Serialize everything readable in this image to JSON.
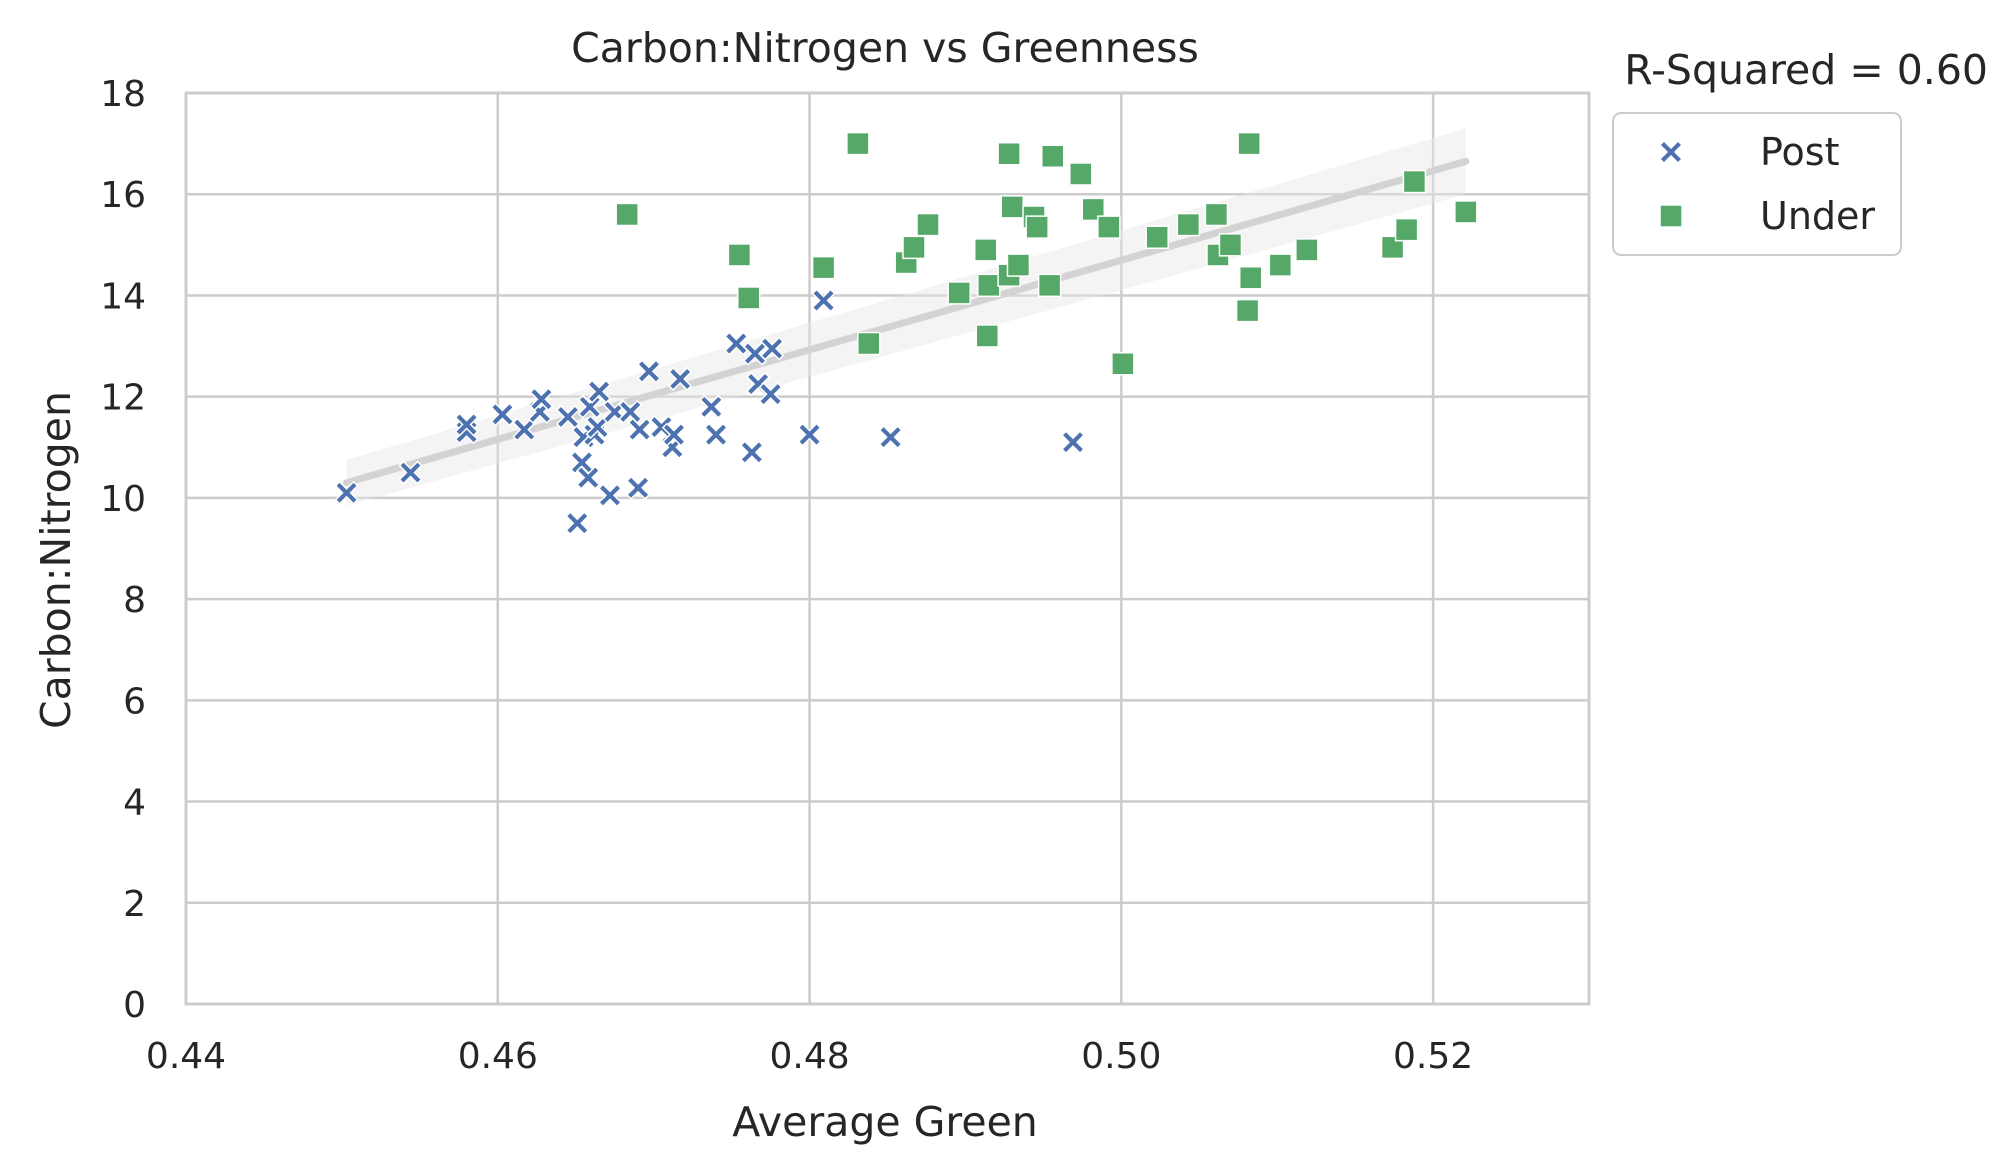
{
  "chart_data": {
    "type": "scatter",
    "title": "Carbon:Nitrogen vs Greenness",
    "xlabel": "Average Green",
    "ylabel": "Carbon:Nitrogen",
    "xlim": [
      0.44,
      0.53
    ],
    "ylim": [
      0,
      18
    ],
    "xticks": [
      "0.44",
      "0.46",
      "0.48",
      "0.50",
      "0.52"
    ],
    "yticks": [
      "0",
      "2",
      "4",
      "6",
      "8",
      "10",
      "12",
      "14",
      "16",
      "18"
    ],
    "grid": true,
    "annotation": "R-Squared = 0.60",
    "legend": {
      "placement": "outside-right",
      "entries": [
        "Post",
        "Under"
      ]
    },
    "series": [
      {
        "name": "Post",
        "marker": "x",
        "color": "#4c72b0",
        "points": [
          [
            0.4503,
            10.1
          ],
          [
            0.4544,
            10.5
          ],
          [
            0.458,
            11.3
          ],
          [
            0.458,
            11.45
          ],
          [
            0.4603,
            11.65
          ],
          [
            0.4617,
            11.35
          ],
          [
            0.4627,
            11.7
          ],
          [
            0.4628,
            11.95
          ],
          [
            0.4645,
            11.6
          ],
          [
            0.4651,
            9.5
          ],
          [
            0.4654,
            10.7
          ],
          [
            0.4655,
            11.2
          ],
          [
            0.4658,
            10.4
          ],
          [
            0.4659,
            11.8
          ],
          [
            0.4662,
            11.25
          ],
          [
            0.4664,
            11.4
          ],
          [
            0.4665,
            12.1
          ],
          [
            0.4672,
            10.05
          ],
          [
            0.4675,
            11.7
          ],
          [
            0.4685,
            11.7
          ],
          [
            0.469,
            10.2
          ],
          [
            0.4691,
            11.35
          ],
          [
            0.4697,
            12.5
          ],
          [
            0.4705,
            11.4
          ],
          [
            0.4712,
            11.0
          ],
          [
            0.4713,
            11.25
          ],
          [
            0.4717,
            12.35
          ],
          [
            0.4737,
            11.8
          ],
          [
            0.474,
            11.25
          ],
          [
            0.4753,
            13.05
          ],
          [
            0.4763,
            10.9
          ],
          [
            0.4765,
            12.85
          ],
          [
            0.4767,
            12.25
          ],
          [
            0.4775,
            12.05
          ],
          [
            0.4776,
            12.95
          ],
          [
            0.48,
            11.25
          ],
          [
            0.4809,
            13.9
          ],
          [
            0.4852,
            11.2
          ],
          [
            0.4969,
            11.1
          ]
        ]
      },
      {
        "name": "Under",
        "marker": "square",
        "color": "#55a868",
        "points": [
          [
            0.4683,
            15.6
          ],
          [
            0.4755,
            14.8
          ],
          [
            0.4761,
            13.95
          ],
          [
            0.4809,
            14.55
          ],
          [
            0.4831,
            17.0
          ],
          [
            0.4838,
            13.05
          ],
          [
            0.4862,
            14.65
          ],
          [
            0.4867,
            14.95
          ],
          [
            0.4876,
            15.4
          ],
          [
            0.4896,
            14.05
          ],
          [
            0.4913,
            14.9
          ],
          [
            0.4914,
            13.2
          ],
          [
            0.4915,
            14.2
          ],
          [
            0.4928,
            16.8
          ],
          [
            0.4928,
            14.4
          ],
          [
            0.493,
            15.75
          ],
          [
            0.4934,
            14.6
          ],
          [
            0.4944,
            15.55
          ],
          [
            0.4946,
            15.35
          ],
          [
            0.4954,
            14.2
          ],
          [
            0.4956,
            16.75
          ],
          [
            0.4974,
            16.4
          ],
          [
            0.4982,
            15.7
          ],
          [
            0.4992,
            15.35
          ],
          [
            0.5001,
            12.65
          ],
          [
            0.5023,
            15.15
          ],
          [
            0.5043,
            15.4
          ],
          [
            0.5061,
            15.6
          ],
          [
            0.5062,
            14.8
          ],
          [
            0.507,
            15.0
          ],
          [
            0.5081,
            13.7
          ],
          [
            0.5082,
            17.0
          ],
          [
            0.5083,
            14.35
          ],
          [
            0.5102,
            14.6
          ],
          [
            0.5119,
            14.9
          ],
          [
            0.5174,
            14.95
          ],
          [
            0.5183,
            15.3
          ],
          [
            0.5188,
            16.25
          ],
          [
            0.5221,
            15.65
          ]
        ]
      }
    ],
    "regression": {
      "color": "#d3d3d3",
      "x": [
        0.4503,
        0.5221
      ],
      "y": [
        10.3,
        16.65
      ],
      "ci_upper_y": [
        10.75,
        17.3
      ],
      "ci_lower_y": [
        9.85,
        16.0
      ]
    }
  }
}
